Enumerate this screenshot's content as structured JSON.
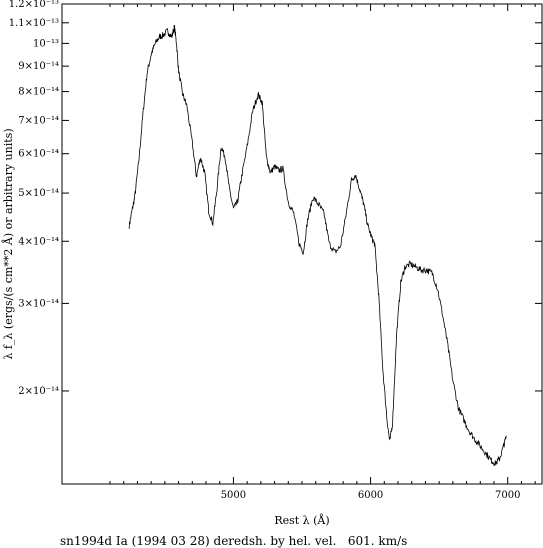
{
  "chart_data": {
    "type": "line",
    "xlabel": "Rest λ (Å)",
    "ylabel": "λ f_λ (ergs/(s cm**2 Å) or arbitrary units)",
    "caption": "sn1994d Ia (1994 03 28) deredsh. by hel. vel.   601. km/s",
    "xlim": [
      3750,
      7250
    ],
    "ylim": [
      1.3e-14,
      1.2e-13
    ],
    "yscale": "log",
    "x_ticks": [
      {
        "value": 5000,
        "label": "5000"
      },
      {
        "value": 6000,
        "label": "6000"
      },
      {
        "value": 7000,
        "label": "7000"
      }
    ],
    "y_ticks": [
      {
        "value": 2e-14,
        "label": "2×10⁻¹⁴"
      },
      {
        "value": 3e-14,
        "label": "3×10⁻¹⁴"
      },
      {
        "value": 4e-14,
        "label": "4×10⁻¹⁴"
      },
      {
        "value": 5e-14,
        "label": "5×10⁻¹⁴"
      },
      {
        "value": 6e-14,
        "label": "6×10⁻¹⁴"
      },
      {
        "value": 7e-14,
        "label": "7×10⁻¹⁴"
      },
      {
        "value": 8e-14,
        "label": "8×10⁻¹⁴"
      },
      {
        "value": 9e-14,
        "label": "9×10⁻¹⁴"
      },
      {
        "value": 1e-13,
        "label": "10⁻¹³"
      },
      {
        "value": 1.1e-13,
        "label": "1.1×10⁻¹³"
      },
      {
        "value": 1.2e-13,
        "label": "1.2×10⁻¹³"
      }
    ],
    "series": [
      {
        "color": "#000000",
        "x": [
          4240,
          4260,
          4280,
          4310,
          4340,
          4370,
          4400,
          4430,
          4460,
          4490,
          4520,
          4550,
          4570,
          4585,
          4600,
          4630,
          4660,
          4700,
          4730,
          4760,
          4790,
          4820,
          4850,
          4880,
          4910,
          4940,
          4970,
          5000,
          5030,
          5060,
          5100,
          5140,
          5180,
          5210,
          5240,
          5270,
          5300,
          5330,
          5360,
          5400,
          5440,
          5480,
          5510,
          5540,
          5580,
          5620,
          5660,
          5700,
          5740,
          5780,
          5820,
          5860,
          5890,
          5920,
          5950,
          5980,
          6010,
          6030,
          6060,
          6090,
          6120,
          6140,
          6160,
          6190,
          6220,
          6250,
          6290,
          6330,
          6370,
          6410,
          6450,
          6490,
          6530,
          6560,
          6600,
          6640,
          6680,
          6720,
          6760,
          6800,
          6840,
          6880,
          6910,
          6940,
          6970,
          6990
        ],
        "y": [
          4.3e-14,
          4.6e-14,
          4.9e-14,
          5.8e-14,
          7.2e-14,
          8.7e-14,
          9.5e-14,
          1e-13,
          1.03e-13,
          1.04e-13,
          1.06e-13,
          1.03e-13,
          1.08e-13,
          1e-13,
          8.8e-14,
          7.9e-14,
          7.5e-14,
          6.3e-14,
          5.4e-14,
          5.9e-14,
          5.5e-14,
          4.6e-14,
          4.35e-14,
          5.1e-14,
          6.2e-14,
          5.9e-14,
          5.1e-14,
          4.65e-14,
          4.8e-14,
          5.4e-14,
          6.2e-14,
          7.3e-14,
          7.9e-14,
          7.6e-14,
          5.9e-14,
          5.5e-14,
          5.65e-14,
          5.55e-14,
          5.6e-14,
          4.8e-14,
          4.55e-14,
          3.95e-14,
          3.8e-14,
          4.4e-14,
          4.9e-14,
          4.75e-14,
          4.55e-14,
          3.95e-14,
          3.8e-14,
          3.9e-14,
          4.5e-14,
          5.3e-14,
          5.45e-14,
          5.1e-14,
          4.75e-14,
          4.3e-14,
          4.05e-14,
          3.95e-14,
          3.1e-14,
          2.2e-14,
          1.75e-14,
          1.58e-14,
          1.72e-14,
          2.6e-14,
          3.3e-14,
          3.55e-14,
          3.6e-14,
          3.55e-14,
          3.5e-14,
          3.5e-14,
          3.45e-14,
          3.2e-14,
          2.8e-14,
          2.5e-14,
          2.1e-14,
          1.85e-14,
          1.75e-14,
          1.66e-14,
          1.6e-14,
          1.55e-14,
          1.5e-14,
          1.45e-14,
          1.43e-14,
          1.46e-14,
          1.55e-14,
          1.62e-14
        ]
      }
    ]
  }
}
